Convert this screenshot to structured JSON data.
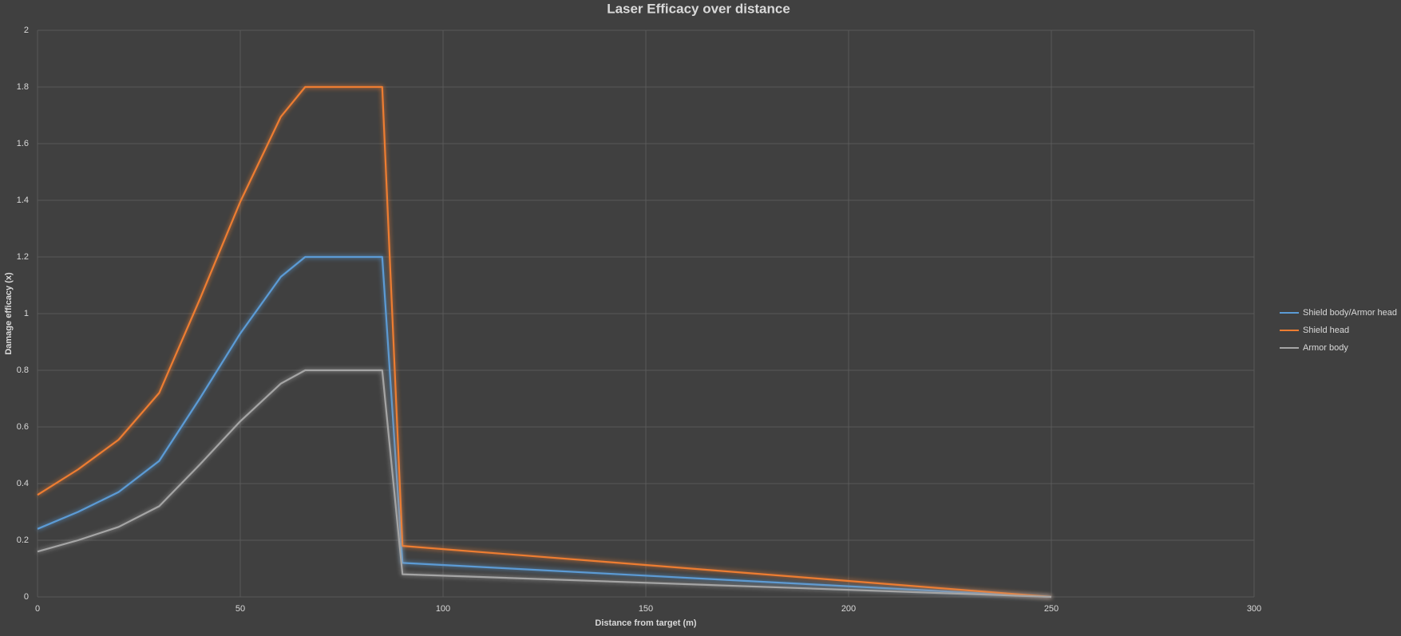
{
  "chart_data": {
    "type": "line",
    "title": "Laser Efficacy over distance",
    "xlabel": "Distance from target (m)",
    "ylabel": "Damage efficacy (x)",
    "x": [
      0,
      10,
      20,
      30,
      40,
      50,
      60,
      66,
      85,
      90,
      250
    ],
    "series": [
      {
        "name": "Shield body/Armor head",
        "color": "#5b9bd5",
        "values": [
          0.24,
          0.3,
          0.37,
          0.48,
          0.7,
          0.93,
          1.13,
          1.2,
          1.2,
          0.12,
          0
        ]
      },
      {
        "name": "Shield head",
        "color": "#ed7d31",
        "values": [
          0.36,
          0.45,
          0.555,
          0.72,
          1.05,
          1.395,
          1.695,
          1.8,
          1.8,
          0.18,
          0
        ]
      },
      {
        "name": "Armor body",
        "color": "#a5a5a5",
        "values": [
          0.16,
          0.2,
          0.247,
          0.32,
          0.467,
          0.62,
          0.753,
          0.8,
          0.8,
          0.08,
          0
        ]
      }
    ],
    "xlim": [
      0,
      300
    ],
    "xticks": [
      0,
      50,
      100,
      150,
      200,
      250,
      300
    ],
    "ylim": [
      0,
      2
    ],
    "yticks": [
      0,
      0.2,
      0.4,
      0.6,
      0.8,
      1,
      1.2,
      1.4,
      1.6,
      1.8,
      2
    ],
    "grid": true,
    "legend": "right"
  }
}
